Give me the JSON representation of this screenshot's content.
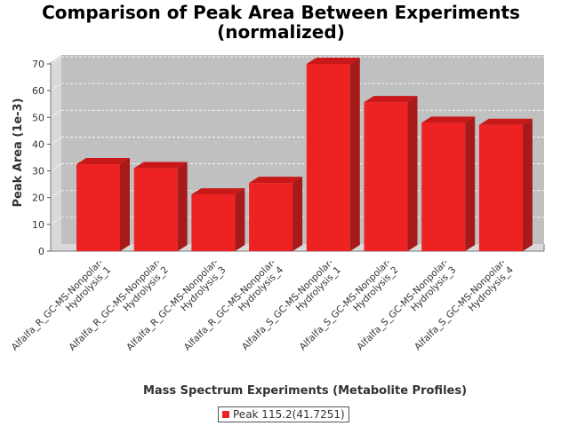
{
  "chart_data": {
    "type": "bar",
    "title_lines": [
      "Comparison of Peak Area Between Experiments",
      "(normalized)"
    ],
    "xlabel": "Mass Spectrum Experiments (Metabolite Profiles)",
    "ylabel": "Peak Area (1e-3)",
    "ylim": [
      0,
      70
    ],
    "yticks": [
      "0",
      "10",
      "20",
      "30",
      "40",
      "50",
      "60",
      "70"
    ],
    "ytick_values": [
      0,
      10,
      20,
      30,
      40,
      50,
      60,
      70
    ],
    "grid": true,
    "legend_position": "bottom",
    "categories": [
      [
        "Alfalfa_R_GC-MS-Nonpolar-",
        "Hydrolysis_1"
      ],
      [
        "Alfalfa_R_GC-MS-Nonpolar-",
        "Hydrolysis_2"
      ],
      [
        "Alfalfa_R_GC-MS-Nonpolar-",
        "Hydrolysis_3"
      ],
      [
        "Alfalfa_R_GC-MS-Nonpolar-",
        "Hydrolysis_4"
      ],
      [
        "Alfalfa_S_GC-MS-Nonpolar-",
        "Hydrolysis_1"
      ],
      [
        "Alfalfa_S_GC-MS-Nonpolar-",
        "Hydrolysis_2"
      ],
      [
        "Alfalfa_S_GC-MS-Nonpolar-",
        "Hydrolysis_3"
      ],
      [
        "Alfalfa_S_GC-MS-Nonpolar-",
        "Hydrolysis_4"
      ]
    ],
    "series": [
      {
        "name": "Peak 115.2(41.7251)",
        "color": "#ee2222",
        "values": [
          32.5,
          31.0,
          21.2,
          25.5,
          70.0,
          55.7,
          48.0,
          47.2
        ]
      }
    ]
  },
  "colors": {
    "plot_background": "#c0c0c0",
    "plot_side": "#d9d9d9",
    "bar_front": "#ee2222",
    "bar_top": "#c81818",
    "bar_side": "#a71a1a",
    "gridline": "#ffffff"
  }
}
